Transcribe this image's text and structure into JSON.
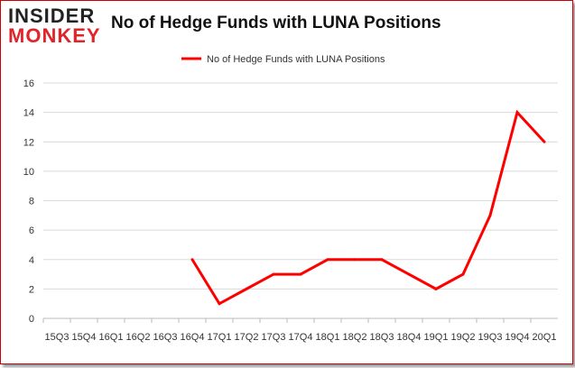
{
  "logo": {
    "line1": "INSIDER",
    "line2": "MONKEY"
  },
  "chart_data": {
    "type": "line",
    "title": "No of Hedge Funds with LUNA Positions",
    "categories": [
      "15Q3",
      "15Q4",
      "16Q1",
      "16Q2",
      "16Q3",
      "16Q4",
      "17Q1",
      "17Q2",
      "17Q3",
      "17Q4",
      "18Q1",
      "18Q2",
      "18Q3",
      "18Q4",
      "19Q1",
      "19Q2",
      "19Q3",
      "19Q4",
      "20Q1"
    ],
    "series": [
      {
        "name": "No of Hedge Funds with LUNA Positions",
        "color": "#ff0000",
        "values": [
          null,
          null,
          null,
          null,
          null,
          4,
          1,
          2,
          3,
          3,
          4,
          4,
          4,
          3,
          2,
          3,
          7,
          14,
          12
        ]
      }
    ],
    "ylim": [
      0,
      16
    ],
    "yticks": [
      0,
      2,
      4,
      6,
      8,
      10,
      12,
      14,
      16
    ],
    "grid": true,
    "legend": "top"
  }
}
